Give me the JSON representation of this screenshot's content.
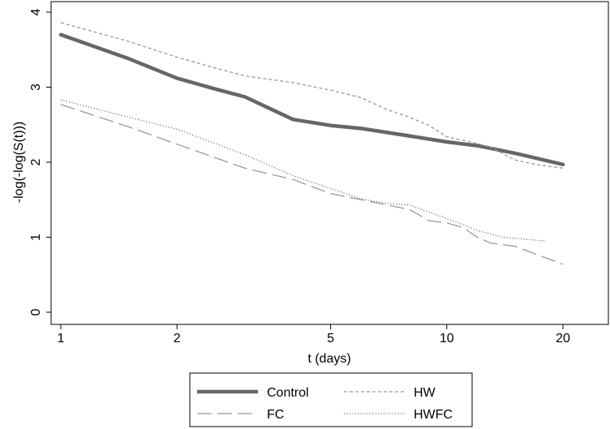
{
  "chart_data": {
    "type": "line",
    "xlabel": "t (days)",
    "ylabel": "-log(-log(S(t)))",
    "xscale": "log",
    "xlim": [
      0.95,
      23
    ],
    "ylim": [
      0,
      4
    ],
    "xticks": [
      1,
      2,
      5,
      10,
      20
    ],
    "xtick_labels": [
      "1",
      "2",
      "5",
      "10",
      "20"
    ],
    "yticks": [
      0,
      1,
      2,
      3,
      4
    ],
    "ytick_labels": [
      "0",
      "1",
      "2",
      "3",
      "4"
    ],
    "grid": false,
    "legend_position": "bottom",
    "series": [
      {
        "name": "Control",
        "style": "solid-thick",
        "color": "#666666",
        "x": [
          1,
          1.5,
          2,
          2.5,
          3,
          4,
          5,
          6,
          8,
          10,
          12,
          15,
          20
        ],
        "y": [
          3.7,
          3.38,
          3.12,
          2.98,
          2.87,
          2.57,
          2.49,
          2.45,
          2.35,
          2.27,
          2.22,
          2.12,
          1.97
        ]
      },
      {
        "name": "HW",
        "style": "short-dash",
        "color": "#999999",
        "x": [
          1,
          1.5,
          2,
          2.5,
          3,
          4,
          5,
          6,
          7,
          8,
          9,
          10,
          12,
          13,
          15,
          17,
          20
        ],
        "y": [
          3.86,
          3.61,
          3.4,
          3.26,
          3.15,
          3.06,
          2.96,
          2.86,
          2.7,
          2.6,
          2.49,
          2.34,
          2.25,
          2.2,
          2.03,
          1.97,
          1.92
        ]
      },
      {
        "name": "FC",
        "style": "long-dash",
        "color": "#999999",
        "x": [
          1,
          1.5,
          2,
          3,
          4,
          5,
          6,
          8,
          9,
          10,
          11,
          12,
          13,
          15,
          20
        ],
        "y": [
          2.77,
          2.47,
          2.24,
          1.92,
          1.77,
          1.58,
          1.5,
          1.37,
          1.22,
          1.19,
          1.13,
          1.0,
          0.92,
          0.88,
          0.64
        ]
      },
      {
        "name": "HWFC",
        "style": "dotted",
        "color": "#444444",
        "x": [
          1,
          1.5,
          2,
          3,
          4,
          5,
          6,
          7,
          8,
          10,
          11,
          12,
          14,
          18
        ],
        "y": [
          2.83,
          2.6,
          2.44,
          2.1,
          1.82,
          1.65,
          1.51,
          1.45,
          1.43,
          1.25,
          1.17,
          1.09,
          1.0,
          0.95
        ]
      }
    ]
  }
}
